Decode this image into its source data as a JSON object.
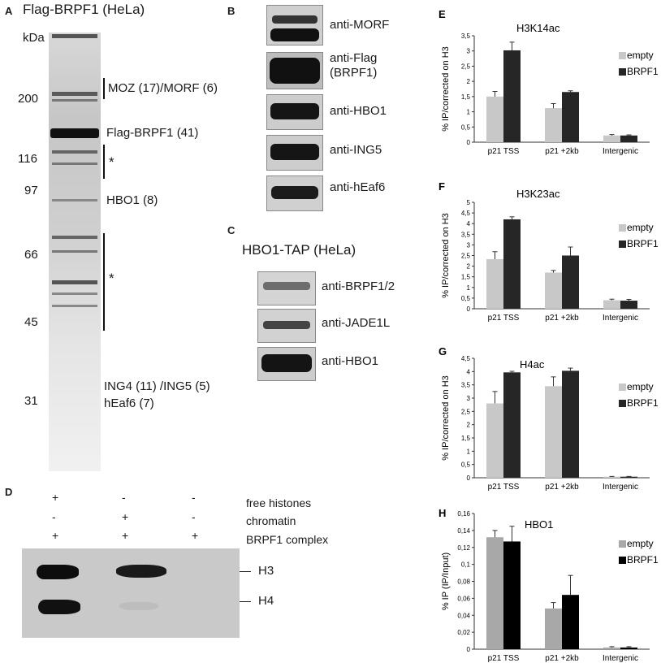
{
  "panel_a": {
    "letter": "A",
    "title": "Flag-BRPF1 (HeLa)",
    "kda_label": "kDa",
    "markers": [
      "200",
      "116",
      "97",
      "66",
      "45",
      "31"
    ],
    "bands": {
      "moz": "MOZ (17)/MORF (6)",
      "flag": "Flag-BRPF1 (41)",
      "hbo1": "HBO1 (8)",
      "ing": "ING4 (11) /ING5 (5)",
      "heaf6": "hEaf6 (7)"
    },
    "asterisk": "*"
  },
  "panel_b": {
    "letter": "B",
    "blots": [
      "anti-MORF",
      "anti-Flag\n(BRPF1)",
      "anti-HBO1",
      "anti-ING5",
      "anti-hEaf6"
    ]
  },
  "panel_c": {
    "letter": "C",
    "title": "HBO1-TAP (HeLa)",
    "blots": [
      "anti-BRPF1/2",
      "anti-JADE1L",
      "anti-HBO1"
    ]
  },
  "panel_d": {
    "letter": "D",
    "rows": [
      {
        "label": "free histones",
        "signs": [
          "+",
          "-",
          "-"
        ]
      },
      {
        "label": "chromatin",
        "signs": [
          "-",
          "+",
          "-"
        ]
      },
      {
        "label": "BRPF1 complex",
        "signs": [
          "+",
          "+",
          "+"
        ]
      }
    ],
    "h3": "H3",
    "h4": "H4"
  },
  "colors": {
    "empty": "#c8c8c8",
    "brpf1": "#262626",
    "hbo1_empty": "#a8a8a8",
    "hbo1_brpf1": "#000000"
  },
  "chart_data": [
    {
      "letter": "E",
      "type": "bar",
      "title": "H3K14ac",
      "ylabel": "% IP/corrected on H3",
      "xlabel": "",
      "categories": [
        "p21 TSS",
        "p21 +2kb",
        "Intergenic"
      ],
      "ylim": [
        0,
        3.5
      ],
      "yticks": [
        "0",
        "0,5",
        "1",
        "1,5",
        "2",
        "2,5",
        "3",
        "3,5"
      ],
      "series": [
        {
          "name": "empty",
          "values": [
            1.5,
            1.12,
            0.22
          ],
          "errors": [
            0.17,
            0.15,
            0.03
          ]
        },
        {
          "name": "BRPF1",
          "values": [
            3.02,
            1.65,
            0.22
          ],
          "errors": [
            0.27,
            0.04,
            0.02
          ]
        }
      ],
      "legend": "right"
    },
    {
      "letter": "F",
      "type": "bar",
      "title": "H3K23ac",
      "ylabel": "% IP/corrected on H3",
      "xlabel": "",
      "categories": [
        "p21 TSS",
        "p21 +2kb",
        "Intergenic"
      ],
      "ylim": [
        0,
        5
      ],
      "yticks": [
        "0",
        "0,5",
        "1",
        "1,5",
        "2",
        "2,5",
        "3",
        "3,5",
        "4",
        "4,5",
        "5"
      ],
      "series": [
        {
          "name": "empty",
          "values": [
            2.33,
            1.7,
            0.4
          ],
          "errors": [
            0.35,
            0.1,
            0.05
          ]
        },
        {
          "name": "BRPF1",
          "values": [
            4.2,
            2.5,
            0.38
          ],
          "errors": [
            0.12,
            0.4,
            0.06
          ]
        }
      ],
      "legend": "right"
    },
    {
      "letter": "G",
      "type": "bar",
      "title": "H4ac",
      "ylabel": "% IP/corrected on H3",
      "xlabel": "",
      "categories": [
        "p21 TSS",
        "p21 +2kb",
        "Intergenic"
      ],
      "ylim": [
        0,
        4.5
      ],
      "yticks": [
        "0",
        "0,5",
        "1",
        "1,5",
        "2",
        "2,5",
        "3",
        "3,5",
        "4",
        "4,5"
      ],
      "series": [
        {
          "name": "empty",
          "values": [
            2.8,
            3.45,
            0.04
          ],
          "errors": [
            0.45,
            0.35,
            0.01
          ]
        },
        {
          "name": "BRPF1",
          "values": [
            3.97,
            4.03,
            0.04
          ],
          "errors": [
            0.04,
            0.1,
            0.01
          ]
        }
      ],
      "legend": "right"
    },
    {
      "letter": "H",
      "type": "bar",
      "title": "HBO1",
      "ylabel": "% IP (IP/Input)",
      "xlabel": "",
      "categories": [
        "p21 TSS",
        "p21 +2kb",
        "Intergenic"
      ],
      "ylim": [
        0,
        0.16
      ],
      "yticks": [
        "0",
        "0,02",
        "0,04",
        "0,06",
        "0,08",
        "0,1",
        "0,12",
        "0,14",
        "0,16"
      ],
      "series": [
        {
          "name": "empty",
          "values": [
            0.132,
            0.048,
            0.002
          ],
          "errors": [
            0.008,
            0.007,
            0.001
          ]
        },
        {
          "name": "BRPF1",
          "values": [
            0.127,
            0.064,
            0.002
          ],
          "errors": [
            0.018,
            0.023,
            0.001
          ]
        }
      ],
      "legend": "right"
    }
  ]
}
